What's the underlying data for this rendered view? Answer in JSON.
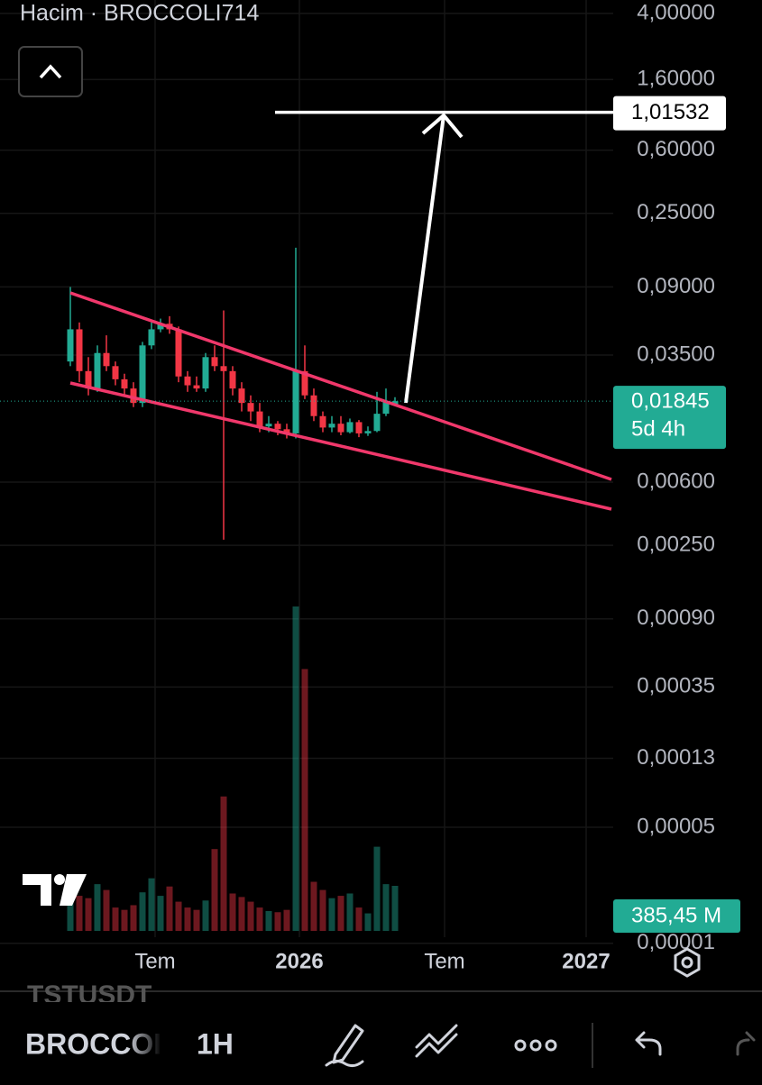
{
  "chart_data": {
    "type": "candlestick",
    "title": "Hacim · BROCCOLI714",
    "log_scale": true,
    "grid": true,
    "up_color": "#22ab94",
    "down_color": "#f23645",
    "ylim": [
      9.6e-06,
      4.82
    ],
    "yticks": [
      {
        "value": 4,
        "label": "4,00000"
      },
      {
        "value": 1.6,
        "label": "1,60000"
      },
      {
        "value": 0.6,
        "label": "0,60000"
      },
      {
        "value": 0.25,
        "label": "0,25000"
      },
      {
        "value": 0.09,
        "label": "0,09000"
      },
      {
        "value": 0.035,
        "label": "0,03500"
      },
      {
        "value": 0.006,
        "label": "0,00600"
      },
      {
        "value": 0.0025,
        "label": "0,00250"
      },
      {
        "value": 0.0009,
        "label": "0,00090"
      },
      {
        "value": 0.00035,
        "label": "0,00035"
      },
      {
        "value": 0.00013,
        "label": "0,00013"
      },
      {
        "value": 5e-05,
        "label": "0,00005"
      },
      {
        "value": 1e-05,
        "label": "0,00001"
      }
    ],
    "xlim": [
      -7.8,
      60.2
    ],
    "xticks": [
      {
        "value": 9.4,
        "label": "Tem"
      },
      {
        "value": 25.4,
        "label": "2026"
      },
      {
        "value": 41.5,
        "label": "Tem"
      },
      {
        "value": 57.2,
        "label": "2027"
      }
    ],
    "open": [
      0.032,
      0.05,
      0.028,
      0.022,
      0.036,
      0.03,
      0.025,
      0.022,
      0.018,
      0.04,
      0.05,
      0.054,
      0.05,
      0.026,
      0.023,
      0.022,
      0.034,
      0.03,
      0.028,
      0.022,
      0.018,
      0.016,
      0.013,
      0.0135,
      0.0125,
      0.0118,
      0.028,
      0.02,
      0.015,
      0.0128,
      0.0135,
      0.012,
      0.0138,
      0.0118,
      0.0122,
      0.0155,
      0.0175
    ],
    "high": [
      0.09,
      0.055,
      0.034,
      0.04,
      0.046,
      0.032,
      0.027,
      0.024,
      0.042,
      0.055,
      0.058,
      0.06,
      0.052,
      0.028,
      0.026,
      0.036,
      0.04,
      0.065,
      0.03,
      0.024,
      0.02,
      0.018,
      0.015,
      0.014,
      0.0135,
      0.155,
      0.04,
      0.022,
      0.016,
      0.015,
      0.015,
      0.0145,
      0.0142,
      0.013,
      0.021,
      0.022,
      0.0195
    ],
    "low": [
      0.03,
      0.024,
      0.02,
      0.021,
      0.028,
      0.023,
      0.02,
      0.017,
      0.017,
      0.038,
      0.048,
      0.047,
      0.024,
      0.021,
      0.021,
      0.021,
      0.028,
      0.0027,
      0.02,
      0.016,
      0.014,
      0.012,
      0.012,
      0.0115,
      0.011,
      0.011,
      0.019,
      0.014,
      0.012,
      0.012,
      0.0115,
      0.0118,
      0.0112,
      0.0114,
      0.012,
      0.015,
      0.0175
    ],
    "close": [
      0.05,
      0.028,
      0.022,
      0.036,
      0.03,
      0.025,
      0.022,
      0.018,
      0.04,
      0.05,
      0.054,
      0.05,
      0.026,
      0.023,
      0.022,
      0.034,
      0.03,
      0.028,
      0.022,
      0.018,
      0.016,
      0.013,
      0.0135,
      0.0125,
      0.0118,
      0.028,
      0.02,
      0.015,
      0.0128,
      0.0135,
      0.012,
      0.0138,
      0.0118,
      0.0122,
      0.0155,
      0.0185,
      0.01845
    ],
    "volume": {
      "values": [
        250,
        300,
        280,
        400,
        350,
        200,
        180,
        220,
        330,
        450,
        300,
        380,
        250,
        200,
        180,
        260,
        700,
        1150,
        320,
        290,
        250,
        200,
        170,
        160,
        180,
        2775,
        2240,
        420,
        350,
        280,
        300,
        320,
        200,
        150,
        720,
        400,
        385.45
      ],
      "value_labels": [
        null,
        null,
        null,
        null,
        null,
        null,
        null,
        null,
        null,
        null,
        null,
        null,
        null,
        null,
        null,
        null,
        null,
        null,
        null,
        null,
        null,
        null,
        null,
        null,
        null,
        null,
        null,
        null,
        null,
        null,
        null,
        null,
        null,
        null,
        null,
        null,
        "385,45 M"
      ]
    },
    "target": {
      "value": 1.01532,
      "label": "1,01532"
    },
    "last_price": {
      "value": 0.01845,
      "label": "0,01845",
      "countdown": "5d 4h"
    }
  },
  "toolbar": {
    "previous_symbol": "TSTUSDT",
    "symbol": "BROCCOI",
    "interval": "1H"
  }
}
